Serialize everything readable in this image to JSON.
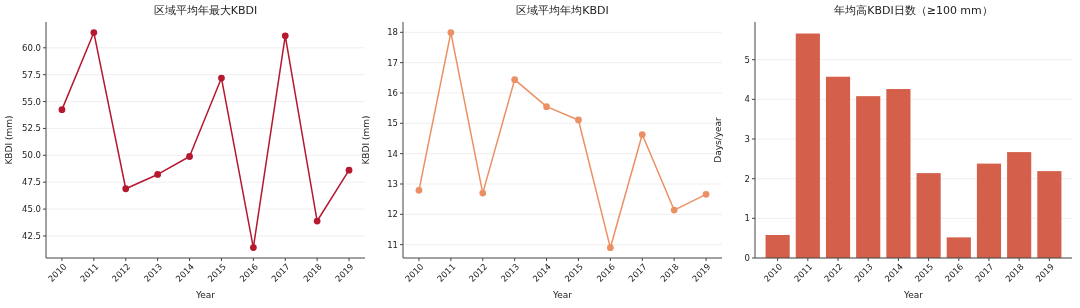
{
  "chart_data": [
    {
      "type": "line",
      "title": "区域平均年最大KBDI",
      "xlabel": "Year",
      "ylabel": "KBDI (mm)",
      "categories": [
        "2010",
        "2011",
        "2012",
        "2013",
        "2014",
        "2015",
        "2016",
        "2017",
        "2018",
        "2019"
      ],
      "series": [
        {
          "color": "#b5182f",
          "values": [
            54.25,
            61.42,
            46.89,
            48.22,
            49.89,
            57.19,
            41.42,
            61.11,
            43.89,
            48.62
          ]
        }
      ],
      "ylim": [
        40.45,
        62.4
      ],
      "yticks": [
        {
          "value": 42.5,
          "label": "42.5"
        },
        {
          "value": 45,
          "label": "45.0"
        },
        {
          "value": 47.5,
          "label": "47.5"
        },
        {
          "value": 50,
          "label": "50.0"
        },
        {
          "value": 52.5,
          "label": "52.5"
        },
        {
          "value": 55,
          "label": "55.0"
        },
        {
          "value": 57.5,
          "label": "57.5"
        },
        {
          "value": 60,
          "label": "60.0"
        }
      ],
      "grid": "y",
      "marker": "circle",
      "line_style": "solid"
    },
    {
      "type": "line",
      "title": "区域平均年均KBDI",
      "xlabel": "Year",
      "ylabel": "KBDI (mm)",
      "categories": [
        "2010",
        "2011",
        "2012",
        "2013",
        "2014",
        "2015",
        "2016",
        "2017",
        "2018",
        "2019"
      ],
      "series": [
        {
          "color": "#eb9064",
          "values": [
            12.79,
            17.99,
            12.7,
            16.44,
            15.55,
            15.11,
            10.9,
            14.63,
            12.14,
            12.66
          ]
        }
      ],
      "ylim": [
        10.56,
        18.34
      ],
      "yticks": [
        11,
        12,
        13,
        14,
        15,
        16,
        17,
        18
      ],
      "grid": "y",
      "marker": "circle",
      "line_style": "solid"
    },
    {
      "type": "bar",
      "title": "年均高KBDI日数（≥100 mm）",
      "xlabel": "Year",
      "ylabel": "Days/year",
      "categories": [
        "2010",
        "2011",
        "2012",
        "2013",
        "2014",
        "2015",
        "2016",
        "2017",
        "2018",
        "2019"
      ],
      "series": [
        {
          "color": "#d45f4a",
          "values": [
            0.58,
            5.66,
            4.57,
            4.08,
            4.26,
            2.14,
            0.52,
            2.38,
            2.67,
            2.19
          ]
        }
      ],
      "ylim": [
        0,
        5.95
      ],
      "yticks": [
        0,
        1,
        2,
        3,
        4,
        5
      ],
      "grid": "y"
    }
  ]
}
